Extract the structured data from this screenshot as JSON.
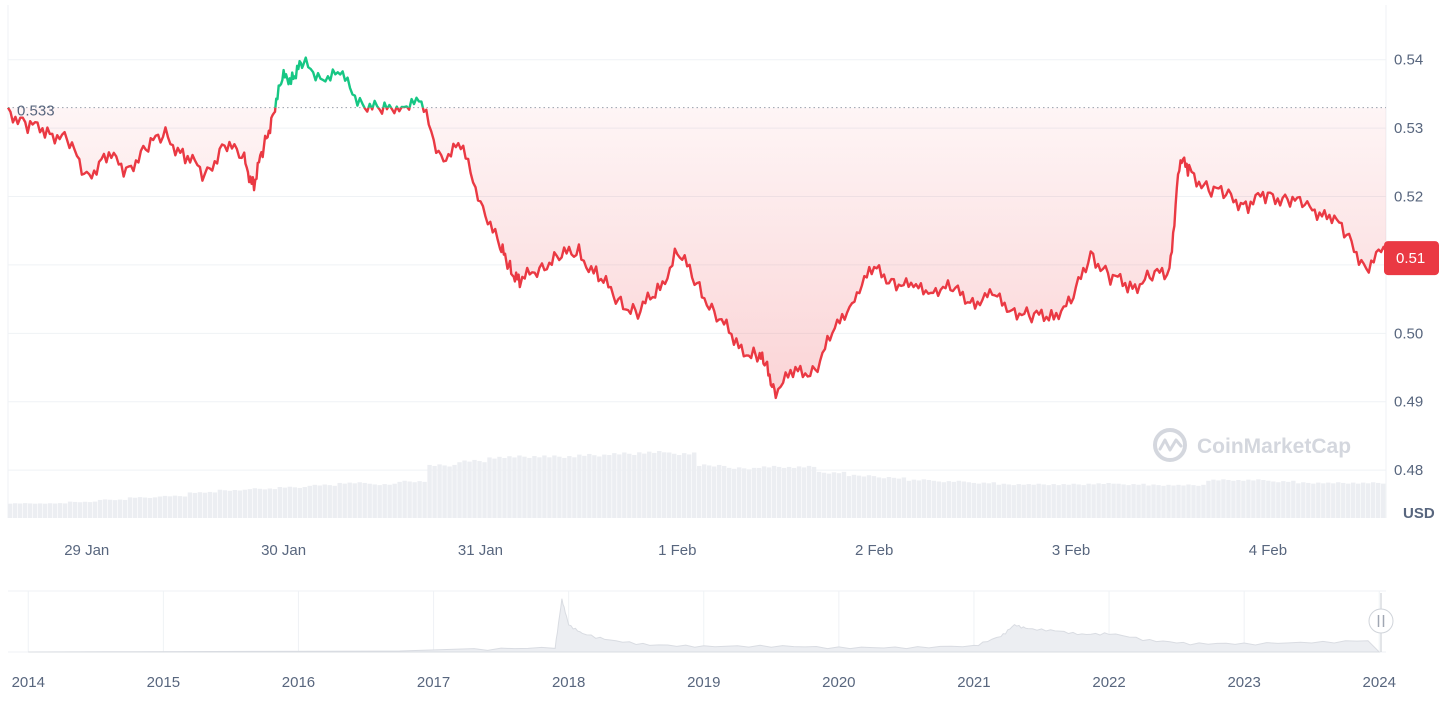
{
  "chart_data": {
    "type": "line",
    "currency_label": "USD",
    "watermark": "CoinMarketCap",
    "brand_colors": {
      "up": "#16c784",
      "down": "#ea3943",
      "grid": "#eff2f5",
      "text": "#58667e"
    },
    "reference_price": 0.533,
    "reference_label": "0.533",
    "current_price": 0.511,
    "current_label": "0.51",
    "ylim": [
      0.473,
      0.548
    ],
    "y_ticks": [
      0.48,
      0.49,
      0.5,
      0.51,
      0.52,
      0.53,
      0.54
    ],
    "y_tick_labels": [
      "0.48",
      "0.49",
      "0.50",
      "0.51",
      "0.52",
      "0.53",
      "0.54"
    ],
    "x_ticks": [
      {
        "day": 1,
        "label": "29 Jan"
      },
      {
        "day": 2,
        "label": "30 Jan"
      },
      {
        "day": 3,
        "label": "31 Jan"
      },
      {
        "day": 4,
        "label": "1 Feb"
      },
      {
        "day": 5,
        "label": "2 Feb"
      },
      {
        "day": 6,
        "label": "3 Feb"
      },
      {
        "day": 7,
        "label": "4 Feb"
      }
    ],
    "xlim_days": [
      0.6,
      7.6
    ],
    "series": [
      {
        "name": "",
        "x_days": [
          0.6,
          0.7,
          0.8,
          0.9,
          1.0,
          1.1,
          1.2,
          1.3,
          1.4,
          1.5,
          1.6,
          1.7,
          1.8,
          1.85,
          1.9,
          1.95,
          2.0,
          2.05,
          2.1,
          2.2,
          2.3,
          2.4,
          2.5,
          2.6,
          2.7,
          2.8,
          2.9,
          3.0,
          3.1,
          3.15,
          3.2,
          3.3,
          3.4,
          3.5,
          3.6,
          3.7,
          3.8,
          3.9,
          4.0,
          4.1,
          4.2,
          4.3,
          4.4,
          4.45,
          4.5,
          4.6,
          4.7,
          4.8,
          4.9,
          5.0,
          5.1,
          5.2,
          5.3,
          5.4,
          5.5,
          5.6,
          5.7,
          5.8,
          5.9,
          6.0,
          6.1,
          6.2,
          6.3,
          6.4,
          6.5,
          6.55,
          6.6,
          6.7,
          6.8,
          6.9,
          7.0,
          7.1,
          7.2,
          7.3,
          7.4,
          7.5,
          7.6
        ],
        "values": [
          0.533,
          0.53,
          0.53,
          0.528,
          0.523,
          0.526,
          0.524,
          0.527,
          0.529,
          0.526,
          0.523,
          0.528,
          0.525,
          0.522,
          0.527,
          0.533,
          0.537,
          0.538,
          0.539,
          0.538,
          0.537,
          0.534,
          0.532,
          0.534,
          0.533,
          0.526,
          0.527,
          0.52,
          0.512,
          0.51,
          0.507,
          0.51,
          0.511,
          0.512,
          0.508,
          0.505,
          0.503,
          0.506,
          0.512,
          0.507,
          0.503,
          0.498,
          0.497,
          0.495,
          0.492,
          0.494,
          0.495,
          0.5,
          0.506,
          0.509,
          0.508,
          0.506,
          0.507,
          0.506,
          0.505,
          0.505,
          0.504,
          0.502,
          0.503,
          0.504,
          0.512,
          0.508,
          0.507,
          0.508,
          0.509,
          0.525,
          0.524,
          0.521,
          0.52,
          0.519,
          0.52,
          0.52,
          0.518,
          0.518,
          0.514,
          0.51,
          0.512
        ]
      }
    ],
    "volume_levels": [
      0.2,
      0.2,
      0.22,
      0.25,
      0.28,
      0.3,
      0.35,
      0.38,
      0.4,
      0.42,
      0.45,
      0.48,
      0.46,
      0.5,
      0.72,
      0.78,
      0.83,
      0.84,
      0.84,
      0.86,
      0.88,
      0.9,
      0.88,
      0.72,
      0.68,
      0.7,
      0.7,
      0.62,
      0.58,
      0.55,
      0.52,
      0.5,
      0.48,
      0.46,
      0.46,
      0.46,
      0.47,
      0.46,
      0.45,
      0.45,
      0.52,
      0.52,
      0.5,
      0.48,
      0.48,
      0.48
    ],
    "overview": {
      "year_labels": [
        "2014",
        "2015",
        "2016",
        "2017",
        "2018",
        "2019",
        "2020",
        "2021",
        "2022",
        "2023",
        "2024"
      ],
      "years": [
        2014,
        2015,
        2016,
        2017,
        2018,
        2019,
        2020,
        2021,
        2022,
        2023,
        2024
      ],
      "xlim": [
        2013.85,
        2024.05
      ],
      "price_path_x": [
        2014.0,
        2017.3,
        2017.9,
        2017.95,
        2018.0,
        2018.1,
        2018.3,
        2018.6,
        2019.0,
        2019.5,
        2020.0,
        2020.5,
        2021.0,
        2021.2,
        2021.3,
        2021.4,
        2021.6,
        2021.8,
        2022.0,
        2022.3,
        2022.6,
        2023.0,
        2023.5,
        2024.0
      ],
      "price_path_y": [
        0.0,
        0.02,
        0.05,
        0.9,
        0.45,
        0.3,
        0.18,
        0.1,
        0.07,
        0.08,
        0.05,
        0.05,
        0.08,
        0.25,
        0.45,
        0.38,
        0.35,
        0.28,
        0.3,
        0.18,
        0.12,
        0.12,
        0.14,
        0.18
      ],
      "handle_icon": "pause-handle-icon"
    }
  }
}
